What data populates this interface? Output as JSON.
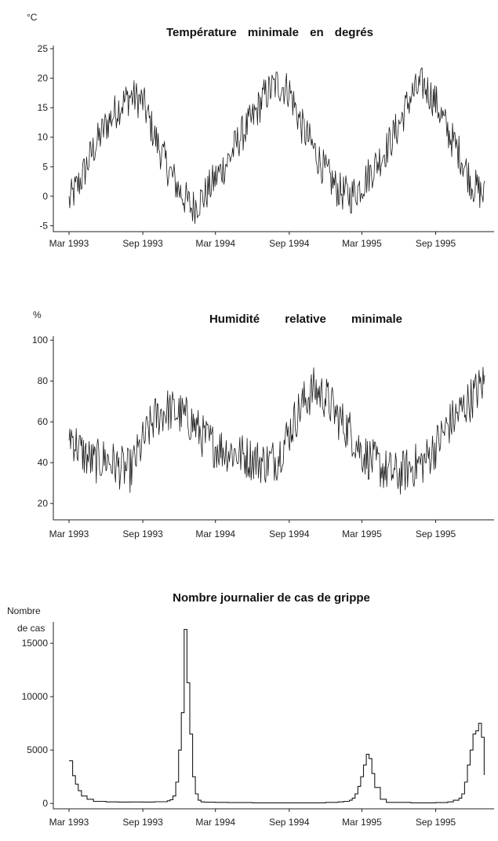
{
  "chart_data": [
    {
      "type": "line",
      "title": "Température minimale en degrés",
      "ylabel": "°C",
      "xlabel": "",
      "ylim": [
        -6,
        25
      ],
      "yticks": [
        -5,
        0,
        5,
        10,
        15,
        20,
        25
      ],
      "xticks": [
        "Mar 1993",
        "Sep 1993",
        "Mar 1994",
        "Sep 1994",
        "Mar 1995",
        "Sep 1995"
      ],
      "xlim": [
        "1993-03-01",
        "1996-01-05"
      ],
      "grid": false,
      "series": [
        {
          "x": [
            "1993-03-01",
            "1993-04-01",
            "1993-05-01",
            "1993-06-01",
            "1993-07-01",
            "1993-08-01",
            "1993-09-01",
            "1993-10-01",
            "1993-11-01",
            "1993-12-01",
            "1994-01-01",
            "1994-02-01",
            "1994-03-01",
            "1994-04-01",
            "1994-05-01",
            "1994-06-01",
            "1994-07-01",
            "1994-08-01",
            "1994-09-01",
            "1994-10-01",
            "1994-11-01",
            "1994-12-01",
            "1995-01-01",
            "1995-02-01",
            "1995-03-01",
            "1995-04-01",
            "1995-05-01",
            "1995-06-01",
            "1995-07-01",
            "1995-08-01",
            "1995-09-01",
            "1995-10-01",
            "1995-11-01",
            "1995-12-01",
            "1996-01-01"
          ],
          "values": [
            -1,
            3,
            8,
            12,
            15,
            17,
            16,
            10,
            5,
            1,
            -2,
            0,
            3,
            6,
            10,
            13,
            17,
            19,
            18,
            12,
            8,
            4,
            1,
            0,
            2,
            5,
            8,
            12,
            17,
            19,
            16,
            11,
            7,
            2,
            0
          ]
        }
      ]
    },
    {
      "type": "line",
      "title": "Humidité relative minimale",
      "ylabel": "%",
      "xlabel": "",
      "ylim": [
        12,
        102
      ],
      "yticks": [
        20,
        40,
        60,
        80,
        100
      ],
      "xticks": [
        "Mar 1993",
        "Sep 1993",
        "Mar 1994",
        "Sep 1994",
        "Mar 1995",
        "Sep 1995"
      ],
      "xlim": [
        "1993-03-01",
        "1996-01-05"
      ],
      "grid": false,
      "series": [
        {
          "x": [
            "1993-03-01",
            "1993-04-01",
            "1993-05-01",
            "1993-06-01",
            "1993-07-01",
            "1993-08-01",
            "1993-09-01",
            "1993-10-01",
            "1993-11-01",
            "1993-12-01",
            "1994-01-01",
            "1994-02-01",
            "1994-03-01",
            "1994-04-01",
            "1994-05-01",
            "1994-06-01",
            "1994-07-01",
            "1994-08-01",
            "1994-09-01",
            "1994-10-01",
            "1994-11-01",
            "1994-12-01",
            "1995-01-01",
            "1995-02-01",
            "1995-03-01",
            "1995-04-01",
            "1995-05-01",
            "1995-06-01",
            "1995-07-01",
            "1995-08-01",
            "1995-09-01",
            "1995-10-01",
            "1995-11-01",
            "1995-12-01",
            "1996-01-01"
          ],
          "values": [
            55,
            45,
            40,
            42,
            38,
            36,
            50,
            62,
            66,
            64,
            60,
            52,
            48,
            46,
            44,
            42,
            40,
            42,
            55,
            68,
            76,
            72,
            62,
            55,
            45,
            40,
            36,
            34,
            38,
            40,
            48,
            58,
            65,
            72,
            80
          ]
        }
      ]
    },
    {
      "type": "line",
      "title": "Nombre journalier de cas de grippe",
      "ylabel": "Nombre de cas",
      "xlabel": "",
      "ylim": [
        -500,
        17000
      ],
      "yticks": [
        0,
        5000,
        10000,
        15000
      ],
      "xticks": [
        "Mar 1993",
        "Sep 1993",
        "Mar 1994",
        "Sep 1994",
        "Mar 1995",
        "Sep 1995"
      ],
      "xlim": [
        "1993-03-01",
        "1996-01-05"
      ],
      "grid": false,
      "series": [
        {
          "step": true,
          "x": [
            "1993-03-01",
            "1993-03-10",
            "1993-03-17",
            "1993-03-24",
            "1993-04-01",
            "1993-04-15",
            "1993-05-01",
            "1993-06-01",
            "1993-07-01",
            "1993-08-01",
            "1993-09-01",
            "1993-10-01",
            "1993-11-01",
            "1993-11-08",
            "1993-11-15",
            "1993-11-22",
            "1993-11-29",
            "1993-12-06",
            "1993-12-13",
            "1993-12-20",
            "1993-12-27",
            "1994-01-03",
            "1994-01-10",
            "1994-01-17",
            "1994-01-24",
            "1994-02-01",
            "1994-03-01",
            "1994-04-01",
            "1994-06-01",
            "1994-09-01",
            "1994-12-01",
            "1995-01-01",
            "1995-01-15",
            "1995-01-29",
            "1995-02-05",
            "1995-02-12",
            "1995-02-19",
            "1995-02-26",
            "1995-03-05",
            "1995-03-12",
            "1995-03-19",
            "1995-03-26",
            "1995-04-02",
            "1995-04-16",
            "1995-05-01",
            "1995-07-01",
            "1995-09-01",
            "1995-10-01",
            "1995-10-15",
            "1995-10-29",
            "1995-11-05",
            "1995-11-12",
            "1995-11-19",
            "1995-11-26",
            "1995-12-03",
            "1995-12-10",
            "1995-12-17",
            "1995-12-24",
            "1995-12-31"
          ],
          "values": [
            4000,
            2600,
            1800,
            1200,
            700,
            400,
            200,
            150,
            130,
            140,
            130,
            160,
            250,
            350,
            700,
            2000,
            5000,
            8500,
            16300,
            11300,
            6500,
            2500,
            900,
            300,
            150,
            120,
            100,
            80,
            60,
            60,
            100,
            150,
            200,
            300,
            500,
            900,
            1600,
            2500,
            3600,
            4600,
            4200,
            2800,
            1500,
            400,
            100,
            60,
            80,
            150,
            300,
            500,
            900,
            2000,
            3600,
            5000,
            6500,
            6800,
            7500,
            6200,
            2700
          ]
        }
      ]
    }
  ]
}
